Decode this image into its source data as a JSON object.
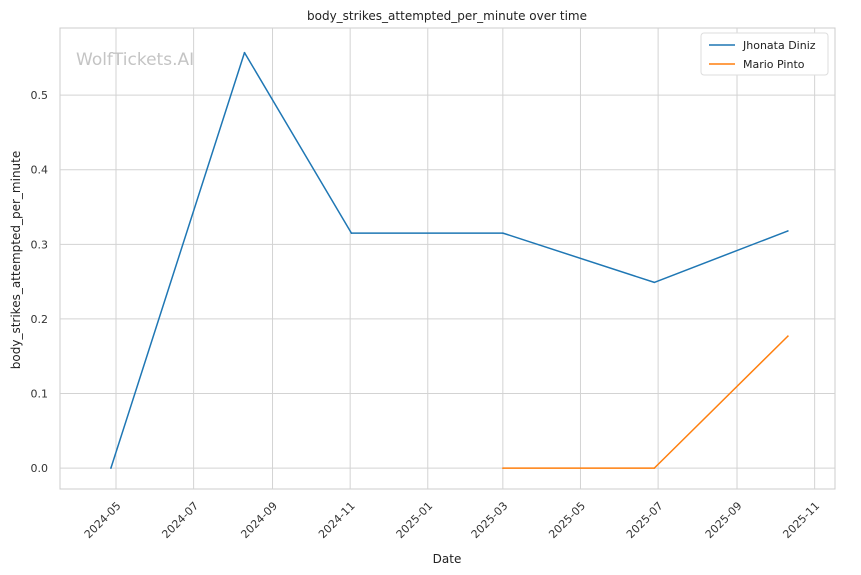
{
  "chart_data": {
    "type": "line",
    "title": "body_strikes_attempted_per_minute over time",
    "xlabel": "Date",
    "ylabel": "body_strikes_attempted_per_minute",
    "x_ticks": [
      "2024-05",
      "2024-07",
      "2024-09",
      "2024-11",
      "2025-01",
      "2025-03",
      "2025-05",
      "2025-07",
      "2025-09",
      "2025-11"
    ],
    "y_ticks": [
      "0.0",
      "0.1",
      "0.2",
      "0.3",
      "0.4",
      "0.5"
    ],
    "xlim": [
      "2024-03-18",
      "2025-11-17"
    ],
    "ylim": [
      -0.028,
      0.59
    ],
    "grid": true,
    "legend_position": "top-right",
    "series": [
      {
        "name": "Jhonata Diniz",
        "color": "#1f77b4",
        "x": [
          "2024-04-27",
          "2024-08-10",
          "2024-11-02",
          "2025-03-01",
          "2025-06-28",
          "2025-10-11"
        ],
        "y": [
          0.0,
          0.557,
          0.315,
          0.315,
          0.249,
          0.318
        ]
      },
      {
        "name": "Mario Pinto",
        "color": "#ff7f0e",
        "x": [
          "2025-03-01",
          "2025-06-28",
          "2025-10-11"
        ],
        "y": [
          0.0,
          0.0,
          0.177
        ]
      }
    ],
    "watermark": "WolfTickets.AI"
  }
}
